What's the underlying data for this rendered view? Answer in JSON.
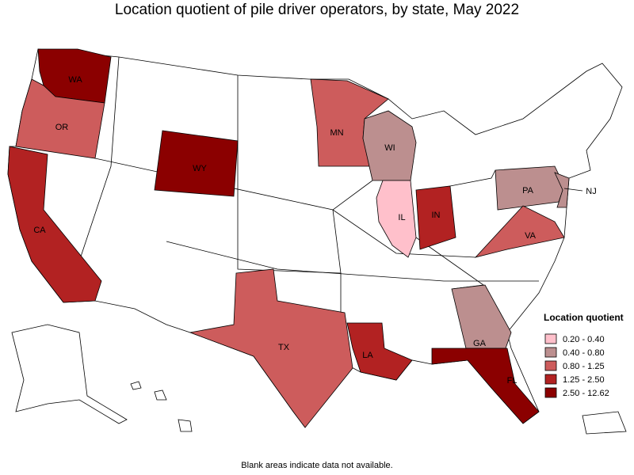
{
  "title": "Location quotient of pile driver operators, by state, May 2022",
  "footnote": "Blank areas indicate data not available.",
  "legend": {
    "title": "Location quotient",
    "items": [
      {
        "label": "0.20 - 0.40",
        "color": "#ffc0cb",
        "states": [
          "IL"
        ]
      },
      {
        "label": "0.40 - 0.80",
        "color": "#bc8f8f",
        "states": [
          "WI",
          "PA",
          "NJ",
          "GA"
        ]
      },
      {
        "label": "0.80 - 1.25",
        "color": "#cd5c5c",
        "states": [
          "OR",
          "MN",
          "TX",
          "VA"
        ]
      },
      {
        "label": "1.25 - 2.50",
        "color": "#b22222",
        "states": [
          "CA",
          "IN",
          "LA"
        ]
      },
      {
        "label": "2.50 - 12.62",
        "color": "#8b0000",
        "states": [
          "WA",
          "WY",
          "FL"
        ]
      }
    ]
  }
}
